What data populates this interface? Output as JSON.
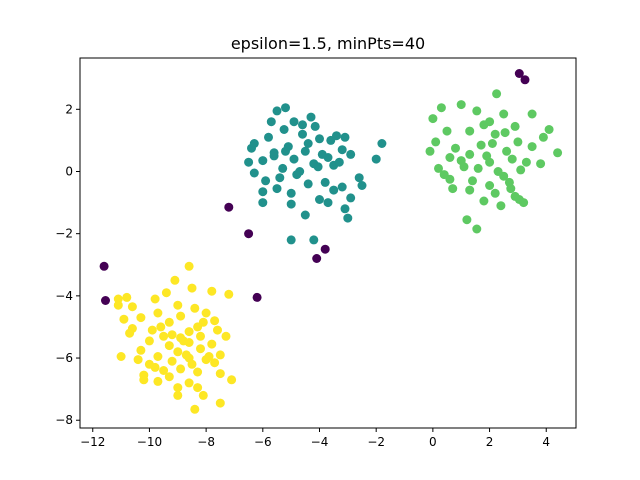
{
  "chart_data": {
    "type": "scatter",
    "title": "epsilon=1.5, minPts=40",
    "xlabel": "",
    "ylabel": "",
    "xlim": [
      -12.45,
      5.05
    ],
    "ylim": [
      -8.25,
      3.65
    ],
    "xticks": [
      -12,
      -10,
      -8,
      -6,
      -4,
      -2,
      0,
      2,
      4
    ],
    "yticks": [
      -8,
      -6,
      -4,
      -2,
      0,
      2
    ],
    "grid": false,
    "legend": "none",
    "series": [
      {
        "color": "#440154",
        "points": [
          [
            3.05,
            3.15
          ],
          [
            3.25,
            2.95
          ],
          [
            -7.2,
            -1.15
          ],
          [
            -6.5,
            -2.0
          ],
          [
            -4.1,
            -2.8
          ],
          [
            -3.8,
            -2.5
          ],
          [
            -6.2,
            -4.05
          ],
          [
            -11.6,
            -3.05
          ],
          [
            -11.55,
            -4.15
          ]
        ]
      },
      {
        "color": "#21918c",
        "points": [
          [
            -5.5,
            1.95
          ],
          [
            -5.2,
            2.05
          ],
          [
            -4.9,
            1.6
          ],
          [
            -4.3,
            1.75
          ],
          [
            -4.15,
            1.45
          ],
          [
            -5.8,
            1.1
          ],
          [
            -5.25,
            1.35
          ],
          [
            -4.6,
            1.2
          ],
          [
            -4.0,
            1.05
          ],
          [
            -3.6,
            1.0
          ],
          [
            -3.1,
            1.1
          ],
          [
            -6.4,
            0.75
          ],
          [
            -5.6,
            0.5
          ],
          [
            -5.1,
            0.8
          ],
          [
            -4.5,
            0.65
          ],
          [
            -3.9,
            0.55
          ],
          [
            -3.2,
            0.7
          ],
          [
            -6.5,
            0.3
          ],
          [
            -6.0,
            0.35
          ],
          [
            -5.3,
            0.1
          ],
          [
            -4.7,
            0.0
          ],
          [
            -4.2,
            0.25
          ],
          [
            -3.5,
            0.2
          ],
          [
            -2.9,
            0.55
          ],
          [
            -2.0,
            0.4
          ],
          [
            -1.8,
            0.9
          ],
          [
            -6.3,
            -0.05
          ],
          [
            -5.9,
            -0.3
          ],
          [
            -5.5,
            -0.55
          ],
          [
            -5.0,
            -0.7
          ],
          [
            -4.4,
            -0.4
          ],
          [
            -3.8,
            -0.35
          ],
          [
            -3.2,
            -0.5
          ],
          [
            -2.6,
            -0.2
          ],
          [
            -6.0,
            -0.65
          ],
          [
            -6.0,
            -1.0
          ],
          [
            -5.0,
            -1.05
          ],
          [
            -4.5,
            -1.4
          ],
          [
            -3.7,
            -1.0
          ],
          [
            -3.1,
            -1.2
          ],
          [
            -2.9,
            -0.85
          ],
          [
            -3.0,
            -1.5
          ],
          [
            -4.2,
            -2.2
          ],
          [
            -5.0,
            -2.2
          ],
          [
            -5.6,
            0.6
          ],
          [
            -4.9,
            0.4
          ],
          [
            -4.4,
            0.9
          ],
          [
            -3.3,
            0.3
          ],
          [
            -5.4,
            -0.2
          ],
          [
            -4.0,
            -0.9
          ],
          [
            -5.7,
            1.6
          ],
          [
            -3.5,
            -0.6
          ],
          [
            -4.8,
            -0.1
          ],
          [
            -6.3,
            0.9
          ],
          [
            -3.4,
            1.15
          ],
          [
            -4.6,
            1.5
          ],
          [
            -5.2,
            0.65
          ],
          [
            -4.05,
            0.15
          ],
          [
            -3.7,
            0.45
          ],
          [
            -2.5,
            -0.45
          ]
        ]
      },
      {
        "color": "#5ec962",
        "points": [
          [
            2.25,
            2.5
          ],
          [
            1.0,
            2.15
          ],
          [
            0.3,
            2.05
          ],
          [
            1.55,
            1.95
          ],
          [
            2.5,
            1.85
          ],
          [
            3.5,
            1.85
          ],
          [
            4.1,
            1.35
          ],
          [
            1.8,
            1.5
          ],
          [
            2.9,
            1.45
          ],
          [
            0.0,
            1.7
          ],
          [
            0.5,
            1.3
          ],
          [
            1.3,
            1.3
          ],
          [
            2.2,
            1.2
          ],
          [
            3.9,
            1.1
          ],
          [
            3.0,
            0.95
          ],
          [
            0.1,
            0.95
          ],
          [
            0.8,
            0.75
          ],
          [
            1.7,
            0.85
          ],
          [
            2.6,
            0.65
          ],
          [
            3.5,
            0.8
          ],
          [
            4.4,
            0.6
          ],
          [
            -0.1,
            0.65
          ],
          [
            0.6,
            0.45
          ],
          [
            1.3,
            0.55
          ],
          [
            2.0,
            0.3
          ],
          [
            2.8,
            0.4
          ],
          [
            3.8,
            0.25
          ],
          [
            0.2,
            0.1
          ],
          [
            1.1,
            0.15
          ],
          [
            2.3,
            0.0
          ],
          [
            3.1,
            0.05
          ],
          [
            0.6,
            -0.25
          ],
          [
            1.4,
            -0.3
          ],
          [
            2.0,
            -0.45
          ],
          [
            2.7,
            -0.35
          ],
          [
            0.7,
            -0.55
          ],
          [
            1.3,
            -0.6
          ],
          [
            2.2,
            -0.7
          ],
          [
            2.9,
            -0.8
          ],
          [
            3.2,
            -1.0
          ],
          [
            1.8,
            -0.95
          ],
          [
            2.4,
            -1.1
          ],
          [
            1.2,
            -1.55
          ],
          [
            1.55,
            -1.85
          ],
          [
            2.5,
            -0.15
          ],
          [
            1.0,
            0.35
          ],
          [
            3.3,
            0.3
          ],
          [
            2.1,
            0.9
          ],
          [
            0.4,
            -0.1
          ],
          [
            1.6,
            0.1
          ],
          [
            2.75,
            -0.55
          ],
          [
            3.05,
            -0.9
          ],
          [
            2.0,
            1.6
          ],
          [
            1.9,
            0.5
          ],
          [
            2.55,
            1.25
          ]
        ]
      },
      {
        "color": "#fde725",
        "points": [
          [
            -8.6,
            -3.05
          ],
          [
            -9.1,
            -3.5
          ],
          [
            -7.2,
            -3.95
          ],
          [
            -7.8,
            -3.85
          ],
          [
            -8.5,
            -3.75
          ],
          [
            -9.4,
            -3.9
          ],
          [
            -9.8,
            -4.1
          ],
          [
            -10.8,
            -4.05
          ],
          [
            -11.1,
            -4.1
          ],
          [
            -11.1,
            -4.3
          ],
          [
            -10.6,
            -4.35
          ],
          [
            -9.0,
            -4.3
          ],
          [
            -8.4,
            -4.4
          ],
          [
            -9.7,
            -4.55
          ],
          [
            -8.9,
            -4.65
          ],
          [
            -8.0,
            -4.55
          ],
          [
            -10.3,
            -4.7
          ],
          [
            -10.9,
            -4.75
          ],
          [
            -7.7,
            -4.8
          ],
          [
            -9.3,
            -4.85
          ],
          [
            -8.3,
            -5.0
          ],
          [
            -10.6,
            -5.05
          ],
          [
            -9.9,
            -5.1
          ],
          [
            -8.6,
            -5.15
          ],
          [
            -7.6,
            -5.1
          ],
          [
            -10.7,
            -5.2
          ],
          [
            -9.5,
            -5.3
          ],
          [
            -8.9,
            -5.35
          ],
          [
            -8.2,
            -5.3
          ],
          [
            -7.3,
            -5.3
          ],
          [
            -10.0,
            -5.45
          ],
          [
            -8.6,
            -5.5
          ],
          [
            -7.8,
            -5.55
          ],
          [
            -9.3,
            -5.6
          ],
          [
            -8.2,
            -5.7
          ],
          [
            -10.3,
            -5.75
          ],
          [
            -9.0,
            -5.8
          ],
          [
            -7.5,
            -5.9
          ],
          [
            -9.7,
            -5.95
          ],
          [
            -8.6,
            -6.0
          ],
          [
            -11.0,
            -5.95
          ],
          [
            -10.4,
            -6.05
          ],
          [
            -9.2,
            -6.1
          ],
          [
            -8.0,
            -6.05
          ],
          [
            -7.7,
            -6.15
          ],
          [
            -9.8,
            -6.3
          ],
          [
            -8.9,
            -6.35
          ],
          [
            -8.3,
            -6.45
          ],
          [
            -7.5,
            -6.5
          ],
          [
            -10.2,
            -6.55
          ],
          [
            -9.3,
            -6.6
          ],
          [
            -10.2,
            -6.7
          ],
          [
            -9.7,
            -6.75
          ],
          [
            -8.6,
            -6.8
          ],
          [
            -7.1,
            -6.7
          ],
          [
            -8.3,
            -6.95
          ],
          [
            -9.0,
            -7.2
          ],
          [
            -8.1,
            -7.2
          ],
          [
            -7.5,
            -7.45
          ],
          [
            -8.4,
            -7.65
          ],
          [
            -9.2,
            -5.25
          ],
          [
            -8.7,
            -5.9
          ],
          [
            -9.5,
            -6.4
          ],
          [
            -8.8,
            -5.45
          ],
          [
            -7.9,
            -5.95
          ],
          [
            -9.6,
            -5.0
          ],
          [
            -8.5,
            -6.2
          ],
          [
            -10.0,
            -6.2
          ],
          [
            -8.1,
            -4.85
          ],
          [
            -9.0,
            -6.95
          ]
        ]
      }
    ]
  }
}
